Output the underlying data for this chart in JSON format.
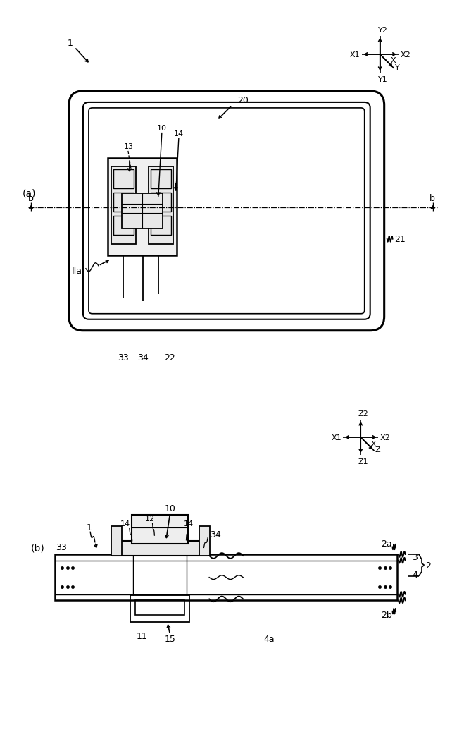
{
  "bg_color": "#ffffff",
  "line_color": "#000000",
  "fig_width": 6.4,
  "fig_height": 10.19,
  "dpi": 100
}
